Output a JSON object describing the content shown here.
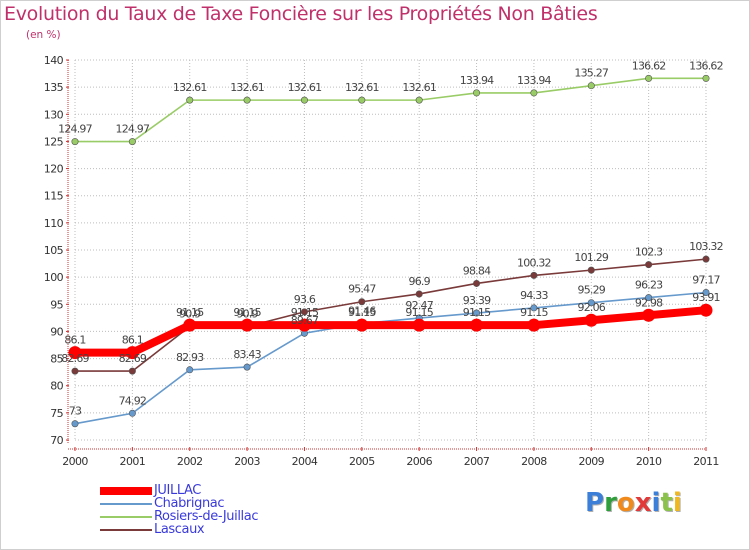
{
  "header": {
    "title": "Evolution du Taux de Taxe Foncière sur les Propriétés Non Bâties",
    "unit": "(en %)"
  },
  "brand": {
    "text": "Proxiti",
    "letter_colors": [
      "#3b7fd9",
      "#2e9f3a",
      "#f08a1c",
      "#e13a3a",
      "#3b7fd9",
      "#8bc34a",
      "#f0b81c"
    ]
  },
  "chart_data": {
    "type": "line",
    "title": "Evolution du Taux de Taxe Foncière sur les Propriétés Non Bâties",
    "ylabel": "(en %)",
    "xlabel": "",
    "ylim": [
      70,
      140
    ],
    "yticks": [
      70,
      75,
      80,
      85,
      90,
      95,
      100,
      105,
      110,
      115,
      120,
      125,
      130,
      135,
      140
    ],
    "grid": true,
    "x": [
      "2000",
      "2001",
      "2002",
      "2003",
      "2004",
      "2005",
      "2006",
      "2007",
      "2008",
      "2009",
      "2010",
      "2011"
    ],
    "series": [
      {
        "name": "JUILLAC",
        "color": "#ff0000",
        "values": [
          86.1,
          86.1,
          91.15,
          91.15,
          91.15,
          91.15,
          91.15,
          91.15,
          91.15,
          92.06,
          92.98,
          93.91
        ],
        "labels": [
          "86.1",
          "86.1",
          "91.15",
          "91.15",
          "91.15",
          "91.15",
          "91.15",
          "91.15",
          "91.15",
          "92.06",
          "92.98",
          "93.91"
        ]
      },
      {
        "name": "Chabrignac",
        "color": "#6699cc",
        "values": [
          73,
          74.92,
          82.93,
          83.43,
          89.67,
          91.46,
          92.47,
          93.39,
          94.33,
          95.29,
          96.23,
          97.17
        ],
        "labels": [
          "73",
          "74.92",
          "82.93",
          "83.43",
          "89.67",
          "91.46",
          "92.47",
          "93.39",
          "94.33",
          "95.29",
          "96.23",
          "97.17"
        ]
      },
      {
        "name": "Rosiers-de-Juillac",
        "color": "#99cc66",
        "values": [
          124.97,
          124.97,
          132.61,
          132.61,
          132.61,
          132.61,
          132.61,
          133.94,
          133.94,
          135.27,
          136.62,
          136.62
        ],
        "labels": [
          "124.97",
          "124.97",
          "132.61",
          "132.61",
          "132.61",
          "132.61",
          "132.61",
          "133.94",
          "133.94",
          "135.27",
          "136.62",
          "136.62"
        ]
      },
      {
        "name": "Lascaux",
        "color": "#7a3a3a",
        "values": [
          82.69,
          82.69,
          90.9,
          90.9,
          93.6,
          95.47,
          96.9,
          98.84,
          100.32,
          101.29,
          102.3,
          103.32
        ],
        "labels": [
          "82.69",
          "82.69",
          "90.9",
          "90.9",
          "93.6",
          "95.47",
          "96.9",
          "98.84",
          "100.32",
          "101.29",
          "102.3",
          "103.32"
        ]
      }
    ],
    "legend": [
      "JUILLAC",
      "Chabrignac",
      "Rosiers-de-Juillac",
      "Lascaux"
    ],
    "legend_position": "bottom-left"
  }
}
